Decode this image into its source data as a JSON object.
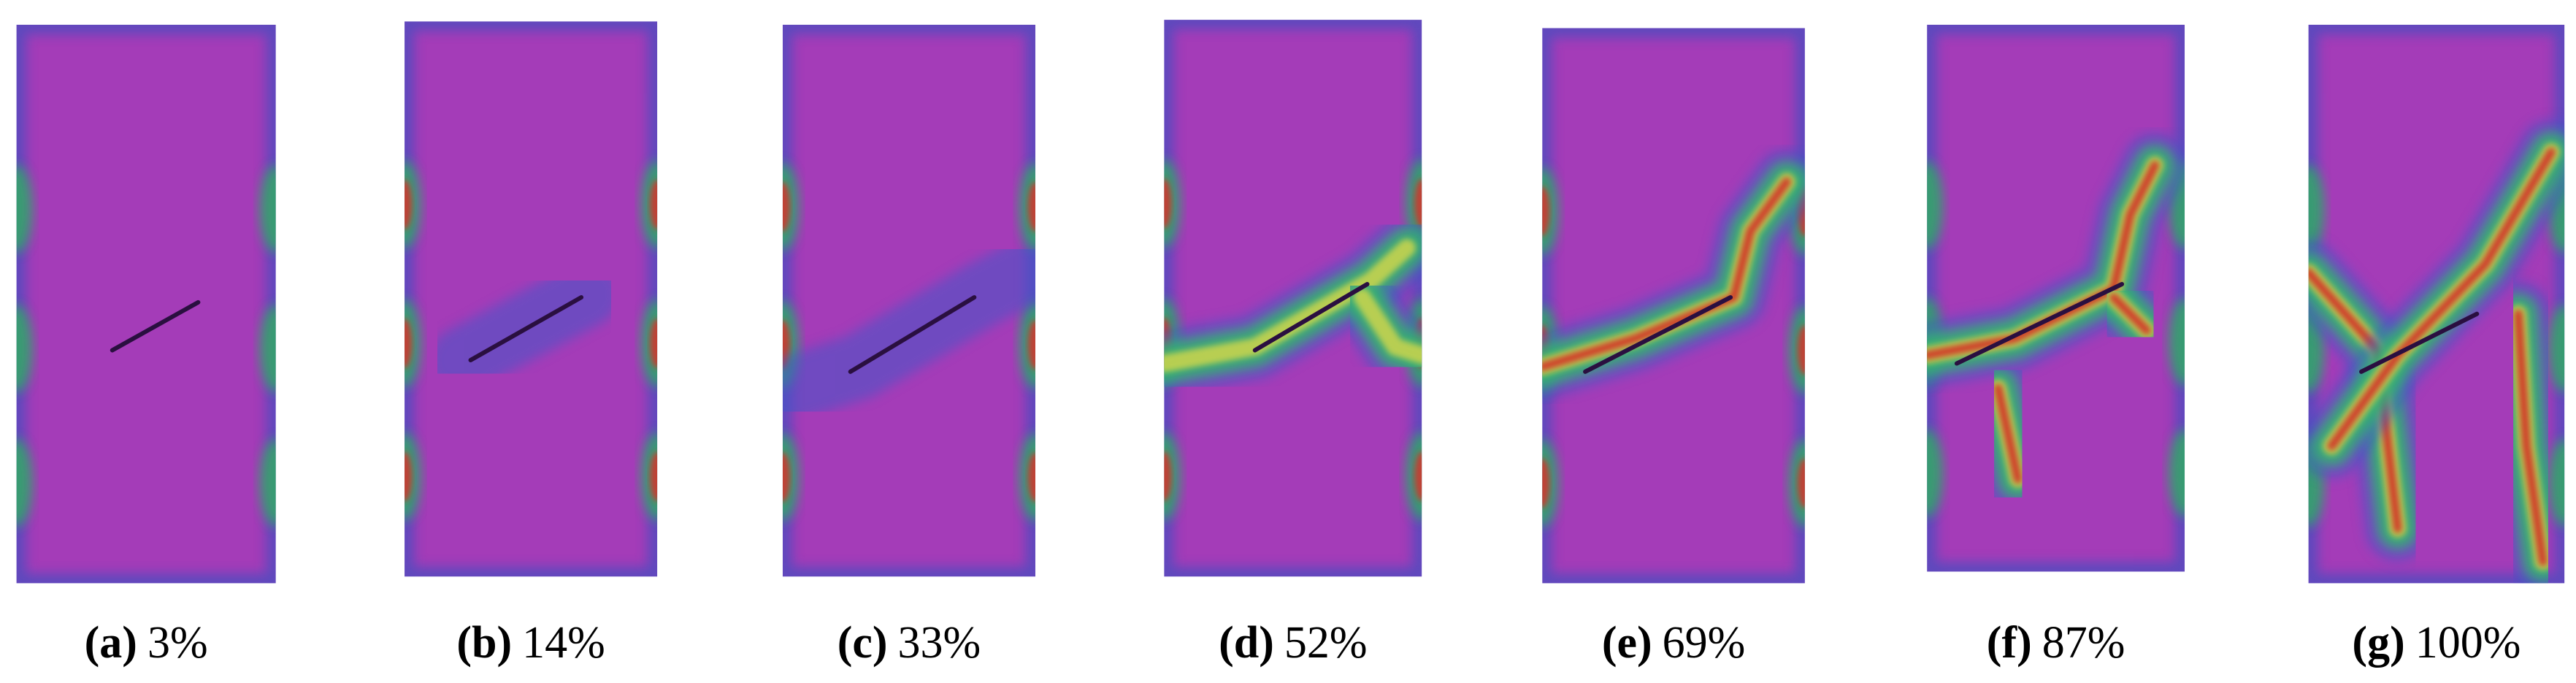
{
  "figure": {
    "panels": [
      {
        "tag": "(a)",
        "caption": "3%"
      },
      {
        "tag": "(b)",
        "caption": "14%"
      },
      {
        "tag": "(c)",
        "caption": "33%"
      },
      {
        "tag": "(d)",
        "caption": "52%"
      },
      {
        "tag": "(e)",
        "caption": "69%"
      },
      {
        "tag": "(f)",
        "caption": "87%"
      },
      {
        "tag": "(g)",
        "caption": "100%"
      }
    ]
  }
}
